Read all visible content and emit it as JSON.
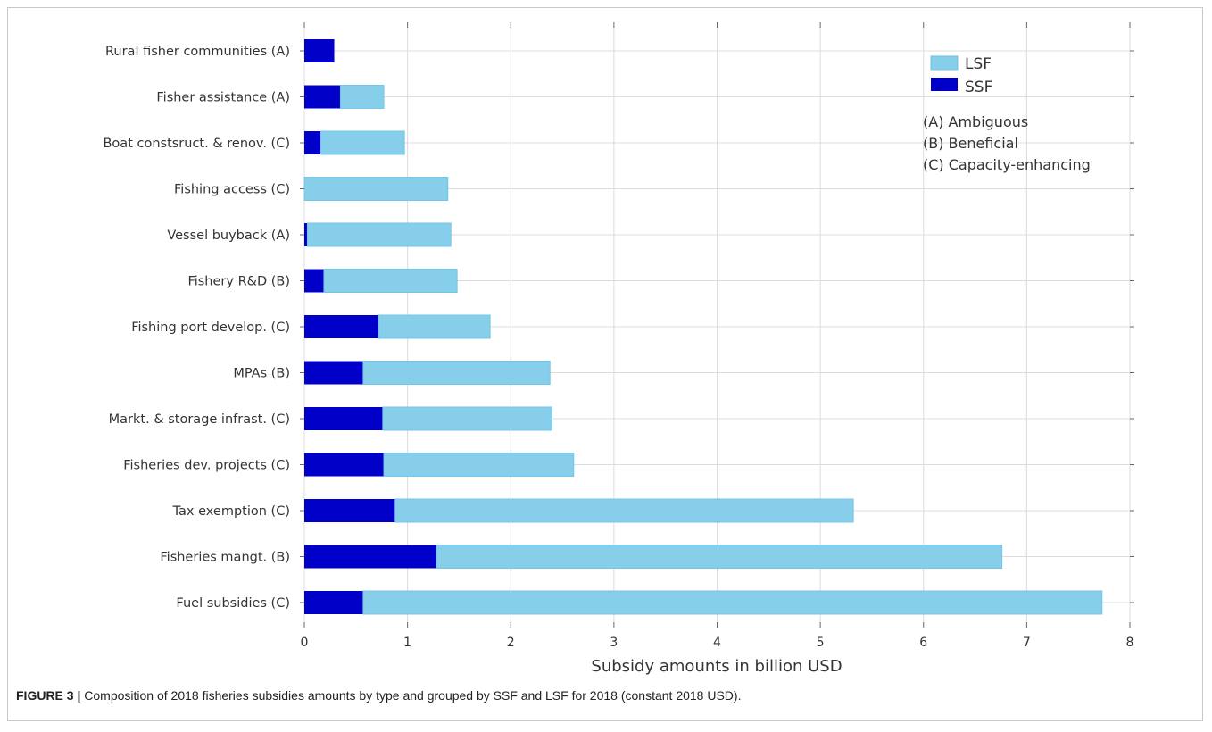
{
  "chart_data": {
    "type": "bar",
    "orientation": "horizontal",
    "stacked": true,
    "categories": [
      "Rural fisher communities (A)",
      "Fisher assistance (A)",
      "Boat constsruct. & renov. (C)",
      "Fishing access (C)",
      "Vessel buyback (A)",
      "Fishery R&D (B)",
      "Fishing port develop. (C)",
      "MPAs (B)",
      "Markt. & storage infrast. (C)",
      "Fisheries dev. projects (C)",
      "Tax exemption (C)",
      "Fisheries mangt. (B)",
      "Fuel subsidies (C)"
    ],
    "series": [
      {
        "name": "SSF",
        "color": "#0000c8",
        "values": [
          0.29,
          0.35,
          0.16,
          0.0,
          0.03,
          0.19,
          0.72,
          0.57,
          0.76,
          0.77,
          0.88,
          1.28,
          0.57
        ]
      },
      {
        "name": "LSF",
        "color": "#87ceeb",
        "values": [
          0.0,
          0.42,
          0.81,
          1.39,
          1.39,
          1.29,
          1.08,
          1.81,
          1.64,
          1.84,
          4.44,
          5.48,
          7.16
        ]
      }
    ],
    "xlabel": "Subsidy amounts in billion USD",
    "ylabel": "",
    "xlim": [
      0,
      8
    ],
    "xticks": [
      0,
      1,
      2,
      3,
      4,
      5,
      6,
      7,
      8
    ],
    "grid": true,
    "legend": {
      "position": "top-right",
      "entries": [
        "LSF",
        "SSF"
      ],
      "notes": [
        "(A) Ambiguous",
        "(B) Beneficial",
        "(C) Capacity-enhancing"
      ]
    }
  },
  "caption": {
    "label": "FIGURE 3 |",
    "text": " Composition of 2018 fisheries subsidies amounts by type and grouped by SSF and LSF for 2018 (constant 2018 USD)."
  }
}
